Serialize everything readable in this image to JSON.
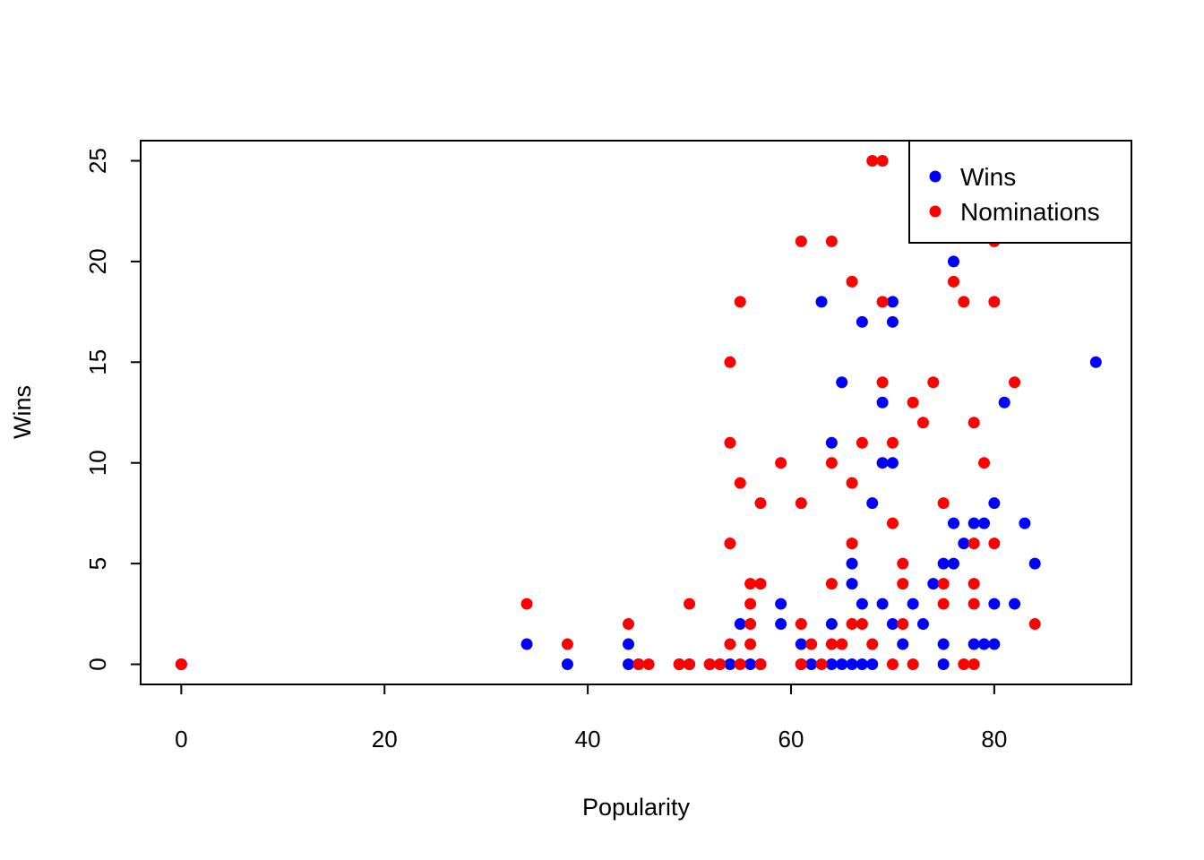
{
  "chart_data": {
    "type": "scatter",
    "title": "",
    "xlabel": "Popularity",
    "ylabel": "Wins",
    "xlim": [
      -4,
      93.5
    ],
    "ylim": [
      -1,
      26
    ],
    "x_ticks": [
      "0",
      "20",
      "40",
      "60",
      "80"
    ],
    "x_tick_values": [
      0,
      20,
      40,
      60,
      80
    ],
    "y_ticks": [
      "0",
      "5",
      "10",
      "15",
      "20",
      "25"
    ],
    "y_tick_values": [
      0,
      5,
      10,
      15,
      20,
      25
    ],
    "grid": false,
    "legend_position": "top-right",
    "series": [
      {
        "name": "Wins",
        "color": "#0000ff",
        "points": [
          [
            0,
            0
          ],
          [
            34,
            1
          ],
          [
            38,
            0
          ],
          [
            44,
            1
          ],
          [
            44,
            0
          ],
          [
            45,
            0
          ],
          [
            49,
            0
          ],
          [
            50,
            0
          ],
          [
            52,
            0
          ],
          [
            53,
            0
          ],
          [
            54,
            0
          ],
          [
            55,
            2
          ],
          [
            56,
            0
          ],
          [
            57,
            0
          ],
          [
            59,
            3
          ],
          [
            59,
            2
          ],
          [
            61,
            1
          ],
          [
            61,
            0
          ],
          [
            62,
            0
          ],
          [
            63,
            18
          ],
          [
            64,
            11
          ],
          [
            64,
            2
          ],
          [
            64,
            0
          ],
          [
            65,
            14
          ],
          [
            65,
            0
          ],
          [
            66,
            5
          ],
          [
            66,
            4
          ],
          [
            66,
            0
          ],
          [
            67,
            17
          ],
          [
            67,
            3
          ],
          [
            67,
            0
          ],
          [
            68,
            8
          ],
          [
            68,
            0
          ],
          [
            69,
            13
          ],
          [
            69,
            10
          ],
          [
            69,
            3
          ],
          [
            70,
            18
          ],
          [
            70,
            17
          ],
          [
            70,
            10
          ],
          [
            70,
            2
          ],
          [
            71,
            1
          ],
          [
            72,
            3
          ],
          [
            73,
            2
          ],
          [
            74,
            4
          ],
          [
            75,
            5
          ],
          [
            75,
            1
          ],
          [
            75,
            0
          ],
          [
            76,
            20
          ],
          [
            76,
            7
          ],
          [
            76,
            5
          ],
          [
            77,
            6
          ],
          [
            78,
            7
          ],
          [
            78,
            1
          ],
          [
            79,
            7
          ],
          [
            79,
            1
          ],
          [
            80,
            8
          ],
          [
            80,
            3
          ],
          [
            80,
            1
          ],
          [
            81,
            13
          ],
          [
            82,
            3
          ],
          [
            83,
            7
          ],
          [
            84,
            5
          ],
          [
            90,
            15
          ]
        ]
      },
      {
        "name": "Nominations",
        "color": "#ff0000",
        "points": [
          [
            0,
            0
          ],
          [
            34,
            3
          ],
          [
            38,
            1
          ],
          [
            44,
            2
          ],
          [
            45,
            0
          ],
          [
            46,
            0
          ],
          [
            49,
            0
          ],
          [
            50,
            3
          ],
          [
            50,
            0
          ],
          [
            52,
            0
          ],
          [
            53,
            0
          ],
          [
            54,
            15
          ],
          [
            54,
            11
          ],
          [
            54,
            6
          ],
          [
            54,
            1
          ],
          [
            55,
            18
          ],
          [
            55,
            9
          ],
          [
            55,
            0
          ],
          [
            56,
            4
          ],
          [
            56,
            3
          ],
          [
            56,
            2
          ],
          [
            56,
            1
          ],
          [
            57,
            8
          ],
          [
            57,
            4
          ],
          [
            57,
            0
          ],
          [
            59,
            10
          ],
          [
            61,
            21
          ],
          [
            61,
            8
          ],
          [
            61,
            2
          ],
          [
            61,
            0
          ],
          [
            62,
            1
          ],
          [
            63,
            0
          ],
          [
            64,
            21
          ],
          [
            64,
            10
          ],
          [
            64,
            4
          ],
          [
            64,
            1
          ],
          [
            65,
            1
          ],
          [
            66,
            19
          ],
          [
            66,
            9
          ],
          [
            66,
            6
          ],
          [
            66,
            2
          ],
          [
            67,
            11
          ],
          [
            67,
            2
          ],
          [
            68,
            25
          ],
          [
            68,
            1
          ],
          [
            69,
            25
          ],
          [
            69,
            18
          ],
          [
            69,
            14
          ],
          [
            70,
            11
          ],
          [
            70,
            7
          ],
          [
            70,
            0
          ],
          [
            71,
            5
          ],
          [
            71,
            4
          ],
          [
            71,
            2
          ],
          [
            72,
            13
          ],
          [
            72,
            0
          ],
          [
            73,
            12
          ],
          [
            74,
            14
          ],
          [
            75,
            8
          ],
          [
            75,
            4
          ],
          [
            75,
            3
          ],
          [
            76,
            19
          ],
          [
            77,
            18
          ],
          [
            77,
            0
          ],
          [
            78,
            12
          ],
          [
            78,
            6
          ],
          [
            78,
            4
          ],
          [
            78,
            3
          ],
          [
            78,
            0
          ],
          [
            79,
            10
          ],
          [
            80,
            21
          ],
          [
            80,
            18
          ],
          [
            80,
            6
          ],
          [
            82,
            14
          ],
          [
            84,
            2
          ]
        ]
      }
    ]
  }
}
